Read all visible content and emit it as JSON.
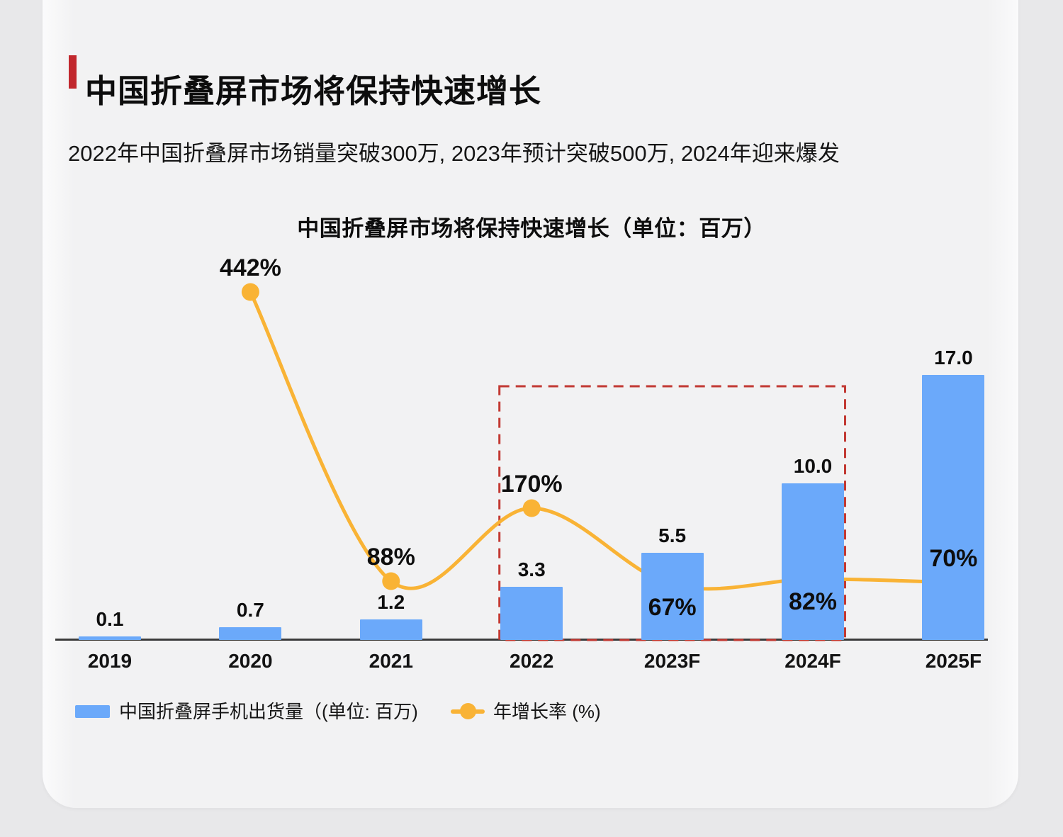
{
  "header": {
    "title": "中国折叠屏市场将保持快速增长",
    "subtitle": "2022年中国折叠屏市场销量突破300万, 2023年预计突破500万, 2024年迎来爆发"
  },
  "chart_data": {
    "type": "bar",
    "subtype": "bar-line-combo",
    "title": "中国折叠屏市场将保持快速增长（单位：百万）",
    "categories": [
      "2019",
      "2020",
      "2021",
      "2022",
      "2023F",
      "2024F",
      "2025F"
    ],
    "series": [
      {
        "name": "中国折叠屏手机出货量（(单位: 百万)",
        "type": "bar",
        "values": [
          0.1,
          0.7,
          1.2,
          3.3,
          5.5,
          10.0,
          17.0
        ],
        "labels": [
          "0.1",
          "0.7",
          "1.2",
          "3.3",
          "5.5",
          "10.0",
          "17.0"
        ],
        "color": "#6BA9FA"
      },
      {
        "name": "年增长率 (%)",
        "type": "line",
        "values": [
          null,
          442,
          88,
          170,
          67,
          82,
          70
        ],
        "labels": [
          null,
          "442%",
          "88%",
          "170%",
          "67%",
          "82%",
          "70%"
        ],
        "color": "#F9B335"
      }
    ],
    "annotations": {
      "highlight_box_categories": [
        "2022",
        "2023F",
        "2024F"
      ]
    },
    "legend_position": "bottom",
    "grid": false,
    "ylim": [
      0,
      18
    ]
  },
  "colors": {
    "page_background": "#E8E8EA",
    "card_background": "#F2F2F3",
    "accent_red": "#C1272D",
    "bar_blue": "#6BA9FA",
    "line_orange": "#F9B335",
    "highlight_dashed_red": "#C23933",
    "axis": "#3A3A3A",
    "text": "#111111"
  }
}
